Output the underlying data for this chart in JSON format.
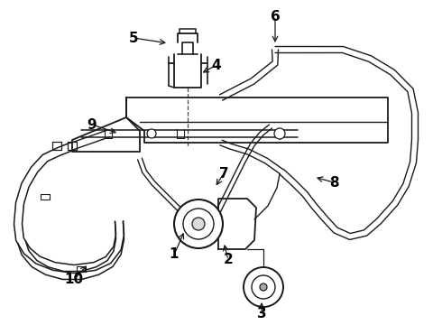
{
  "bg_color": "#ffffff",
  "line_color": "#1a1a1a",
  "figsize": [
    4.9,
    3.6
  ],
  "dpi": 100,
  "label_fontsize": 11,
  "labels": {
    "1": [
      193,
      282,
      205,
      255
    ],
    "2": [
      253,
      288,
      248,
      268
    ],
    "3": [
      290,
      348,
      290,
      330
    ],
    "4": [
      237,
      72,
      218,
      80
    ],
    "5": [
      148,
      42,
      185,
      48
    ],
    "6": [
      305,
      18,
      305,
      50
    ],
    "7": [
      248,
      192,
      235,
      205
    ],
    "8": [
      368,
      202,
      345,
      195
    ],
    "9": [
      102,
      140,
      145,
      148
    ],
    "10": [
      82,
      308,
      98,
      287
    ]
  }
}
